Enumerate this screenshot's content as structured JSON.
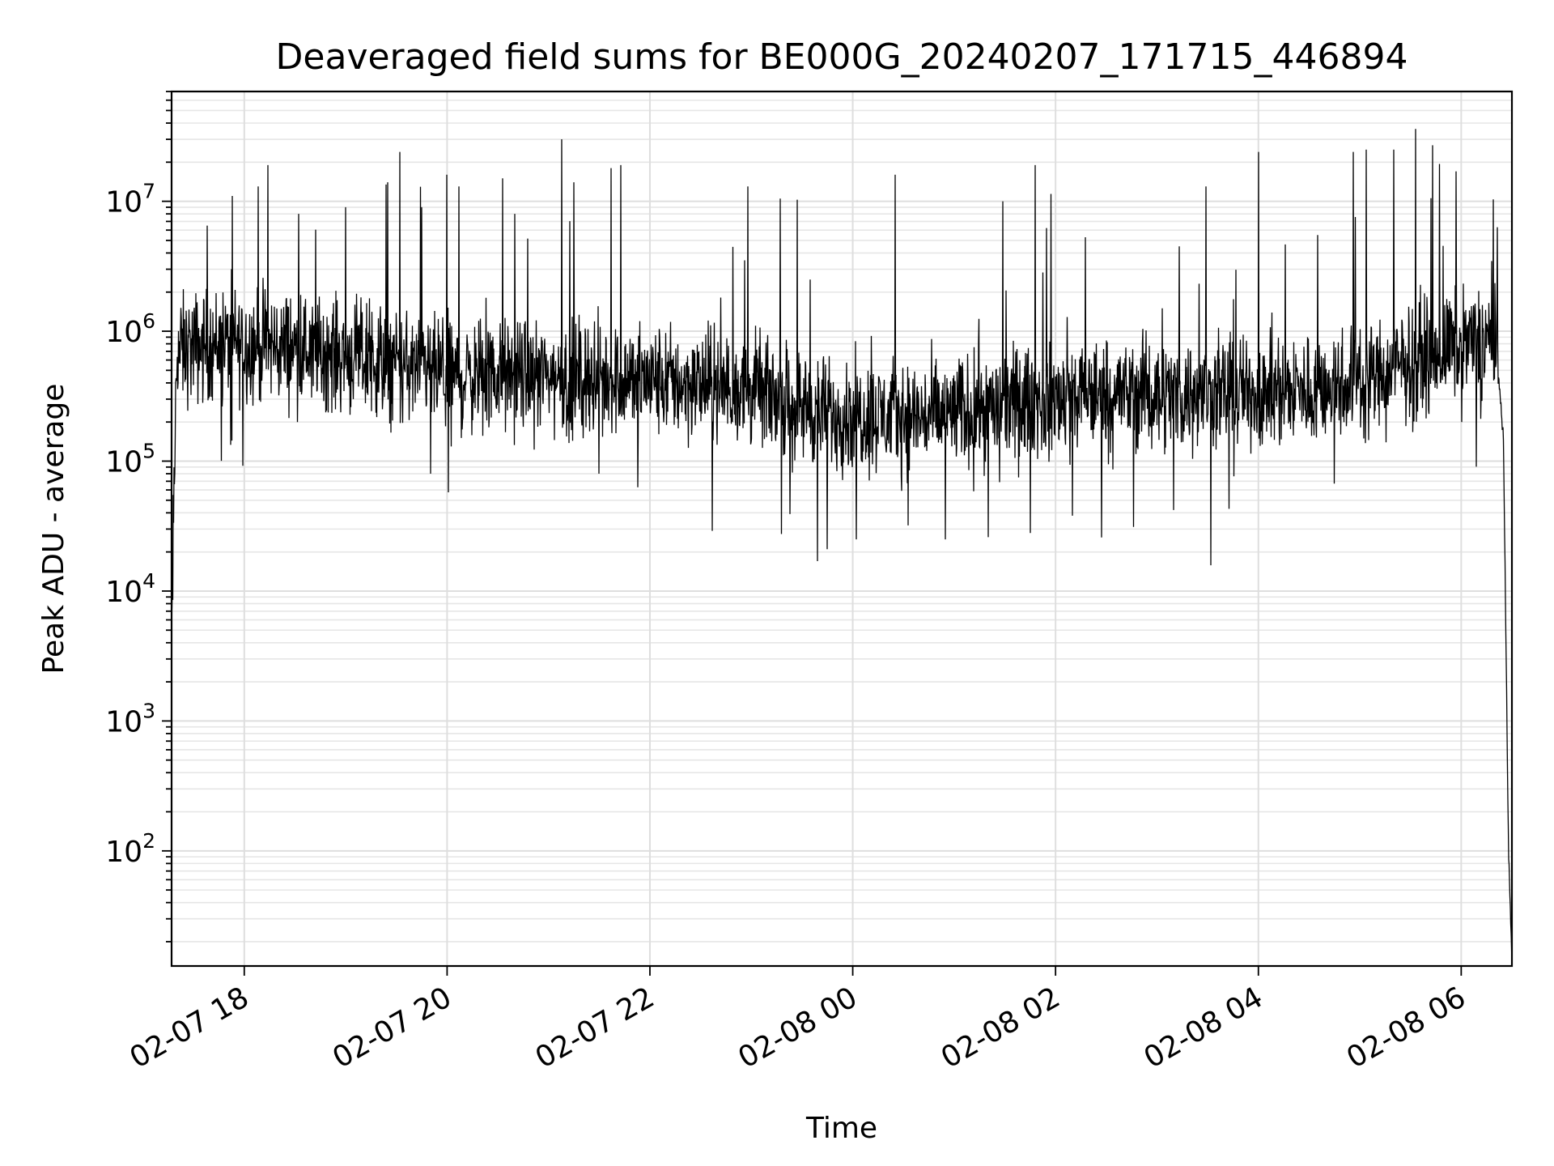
{
  "chart_data": {
    "type": "line",
    "title": "Deaveraged field sums for BE000G_20240207_171715_446894",
    "xlabel": "Time",
    "ylabel": "Peak ADU - average",
    "yscale": "log",
    "ylim": [
      13,
      70000000
    ],
    "xlim": [
      "2024-02-07 17:17",
      "2024-02-08 06:30"
    ],
    "grid": true,
    "x_ticks": [
      {
        "time": "2024-02-07 18:00",
        "label": "02-07 18"
      },
      {
        "time": "2024-02-07 20:00",
        "label": "02-07 20"
      },
      {
        "time": "2024-02-07 22:00",
        "label": "02-07 22"
      },
      {
        "time": "2024-02-08 00:00",
        "label": "02-08 00"
      },
      {
        "time": "2024-02-08 02:00",
        "label": "02-08 02"
      },
      {
        "time": "2024-02-08 04:00",
        "label": "02-08 04"
      },
      {
        "time": "2024-02-08 06:00",
        "label": "02-08 06"
      }
    ],
    "y_ticks": [
      {
        "value": 100,
        "base": "10",
        "exp": "2"
      },
      {
        "value": 1000,
        "base": "10",
        "exp": "3"
      },
      {
        "value": 10000,
        "base": "10",
        "exp": "4"
      },
      {
        "value": 100000,
        "base": "10",
        "exp": "5"
      },
      {
        "value": 1000000,
        "base": "10",
        "exp": "6"
      },
      {
        "value": 10000000,
        "base": "10",
        "exp": "7"
      }
    ],
    "series": [
      {
        "color": "#000000",
        "baseline": [
          [
            "2024-02-07 17:17",
            4000
          ],
          [
            "2024-02-07 17:20",
            700000
          ],
          [
            "2024-02-07 17:45",
            800000
          ],
          [
            "2024-02-07 18:30",
            750000
          ],
          [
            "2024-02-07 19:15",
            600000
          ],
          [
            "2024-02-07 20:00",
            450000
          ],
          [
            "2024-02-07 21:00",
            450000
          ],
          [
            "2024-02-07 22:00",
            420000
          ],
          [
            "2024-02-07 23:00",
            350000
          ],
          [
            "2024-02-07 23:45",
            230000
          ],
          [
            "2024-02-08 00:45",
            220000
          ],
          [
            "2024-02-08 01:30",
            270000
          ],
          [
            "2024-02-08 02:30",
            330000
          ],
          [
            "2024-02-08 03:30",
            330000
          ],
          [
            "2024-02-08 04:30",
            350000
          ],
          [
            "2024-02-08 05:15",
            480000
          ],
          [
            "2024-02-08 05:45",
            700000
          ],
          [
            "2024-02-08 06:20",
            900000
          ],
          [
            "2024-02-08 06:25",
            150000
          ],
          [
            "2024-02-08 06:28",
            100
          ],
          [
            "2024-02-08 06:30",
            15
          ]
        ],
        "spikes": [
          [
            "2024-02-07 17:38",
            6500000
          ],
          [
            "2024-02-07 17:53",
            11000000
          ],
          [
            "2024-02-07 18:08",
            13000000
          ],
          [
            "2024-02-07 18:14",
            19000000
          ],
          [
            "2024-02-07 18:32",
            8000000
          ],
          [
            "2024-02-07 19:00",
            9000000
          ],
          [
            "2024-02-07 19:25",
            14000000
          ],
          [
            "2024-02-07 19:32",
            24000000
          ],
          [
            "2024-02-07 19:45",
            9000000
          ],
          [
            "2024-02-07 20:00",
            16000000
          ],
          [
            "2024-02-07 20:07",
            13000000
          ],
          [
            "2024-02-07 20:33",
            15000000
          ],
          [
            "2024-02-07 20:40",
            8000000
          ],
          [
            "2024-02-07 21:08",
            30000000
          ],
          [
            "2024-02-07 21:15",
            14000000
          ],
          [
            "2024-02-07 21:37",
            18000000
          ],
          [
            "2024-02-07 21:43",
            19000000
          ],
          [
            "2024-02-07 22:58",
            13000000
          ],
          [
            "2024-02-07 23:17",
            10500000
          ],
          [
            "2024-02-07 23:35",
            2500000
          ],
          [
            "2024-02-08 00:25",
            16000000
          ],
          [
            "2024-02-08 01:29",
            10000000
          ],
          [
            "2024-02-08 01:48",
            19000000
          ],
          [
            "2024-02-08 03:03",
            1500000
          ],
          [
            "2024-02-08 03:13",
            4500000
          ],
          [
            "2024-02-08 03:29",
            13000000
          ],
          [
            "2024-02-08 04:00",
            24000000
          ],
          [
            "2024-02-08 04:35",
            5500000
          ],
          [
            "2024-02-08 04:56",
            24000000
          ],
          [
            "2024-02-08 05:04",
            25000000
          ],
          [
            "2024-02-08 05:20",
            25000000
          ],
          [
            "2024-02-08 05:33",
            36000000
          ],
          [
            "2024-02-08 05:43",
            27000000
          ],
          [
            "2024-02-08 05:57",
            17000000
          ]
        ],
        "dips": [
          [
            "2024-02-07 19:50",
            80000
          ],
          [
            "2024-02-07 21:30",
            80000
          ],
          [
            "2024-02-07 21:53",
            63000
          ],
          [
            "2024-02-07 23:39",
            17000
          ],
          [
            "2024-02-07 23:45",
            21000
          ],
          [
            "2024-02-08 00:02",
            25000
          ],
          [
            "2024-02-08 00:33",
            32000
          ],
          [
            "2024-02-08 00:55",
            25000
          ],
          [
            "2024-02-08 01:20",
            26000
          ],
          [
            "2024-02-08 01:45",
            28000
          ],
          [
            "2024-02-08 02:10",
            38000
          ],
          [
            "2024-02-08 03:10",
            42000
          ]
        ]
      }
    ]
  }
}
